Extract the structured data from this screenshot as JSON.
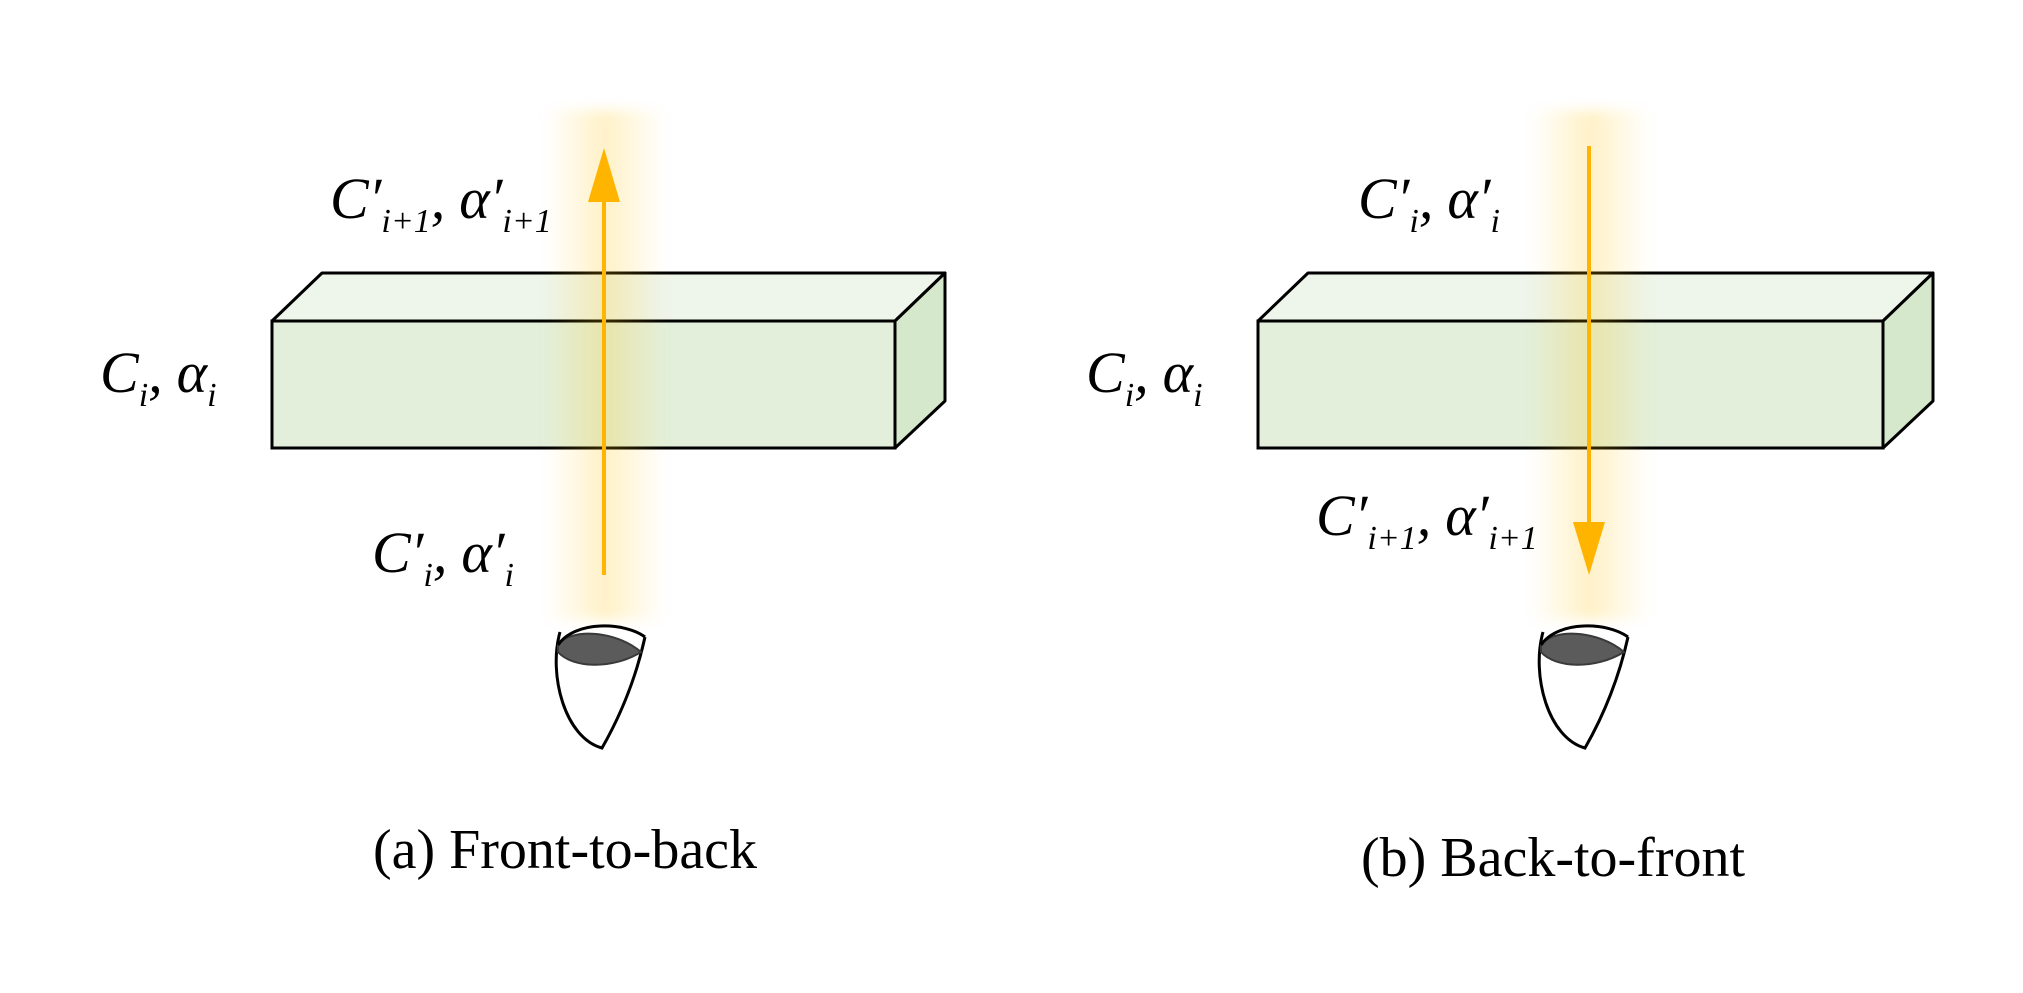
{
  "panels": [
    {
      "id": "front-to-back",
      "caption": "(a) Front-to-back",
      "side_label": {
        "C": "C",
        "C_sub": "i",
        "sep": ",",
        "alpha": "α",
        "alpha_sub": "i"
      },
      "top_label": {
        "C": "C′",
        "C_sub": "i+1",
        "sep": ",",
        "alpha": "α′",
        "alpha_sub": "i+1"
      },
      "bottom_label": {
        "C": "C′",
        "C_sub": "i",
        "sep": ",",
        "alpha": "α′",
        "alpha_sub": "i"
      },
      "ray_direction": "up"
    },
    {
      "id": "back-to-front",
      "caption": "(b) Back-to-front",
      "side_label": {
        "C": "C",
        "C_sub": "i",
        "sep": ",",
        "alpha": "α",
        "alpha_sub": "i"
      },
      "top_label": {
        "C": "C′",
        "C_sub": "i",
        "sep": ",",
        "alpha": "α′",
        "alpha_sub": "i"
      },
      "bottom_label": {
        "C": "C′",
        "C_sub": "i+1",
        "sep": ",",
        "alpha": "α′",
        "alpha_sub": "i+1"
      },
      "ray_direction": "down"
    }
  ],
  "colors": {
    "box_front": "#e3efda",
    "box_top": "#eef5ea",
    "box_side": "#d6e8cc",
    "ray": "#ffb400",
    "eye_pupil": "#5b5b5b"
  }
}
